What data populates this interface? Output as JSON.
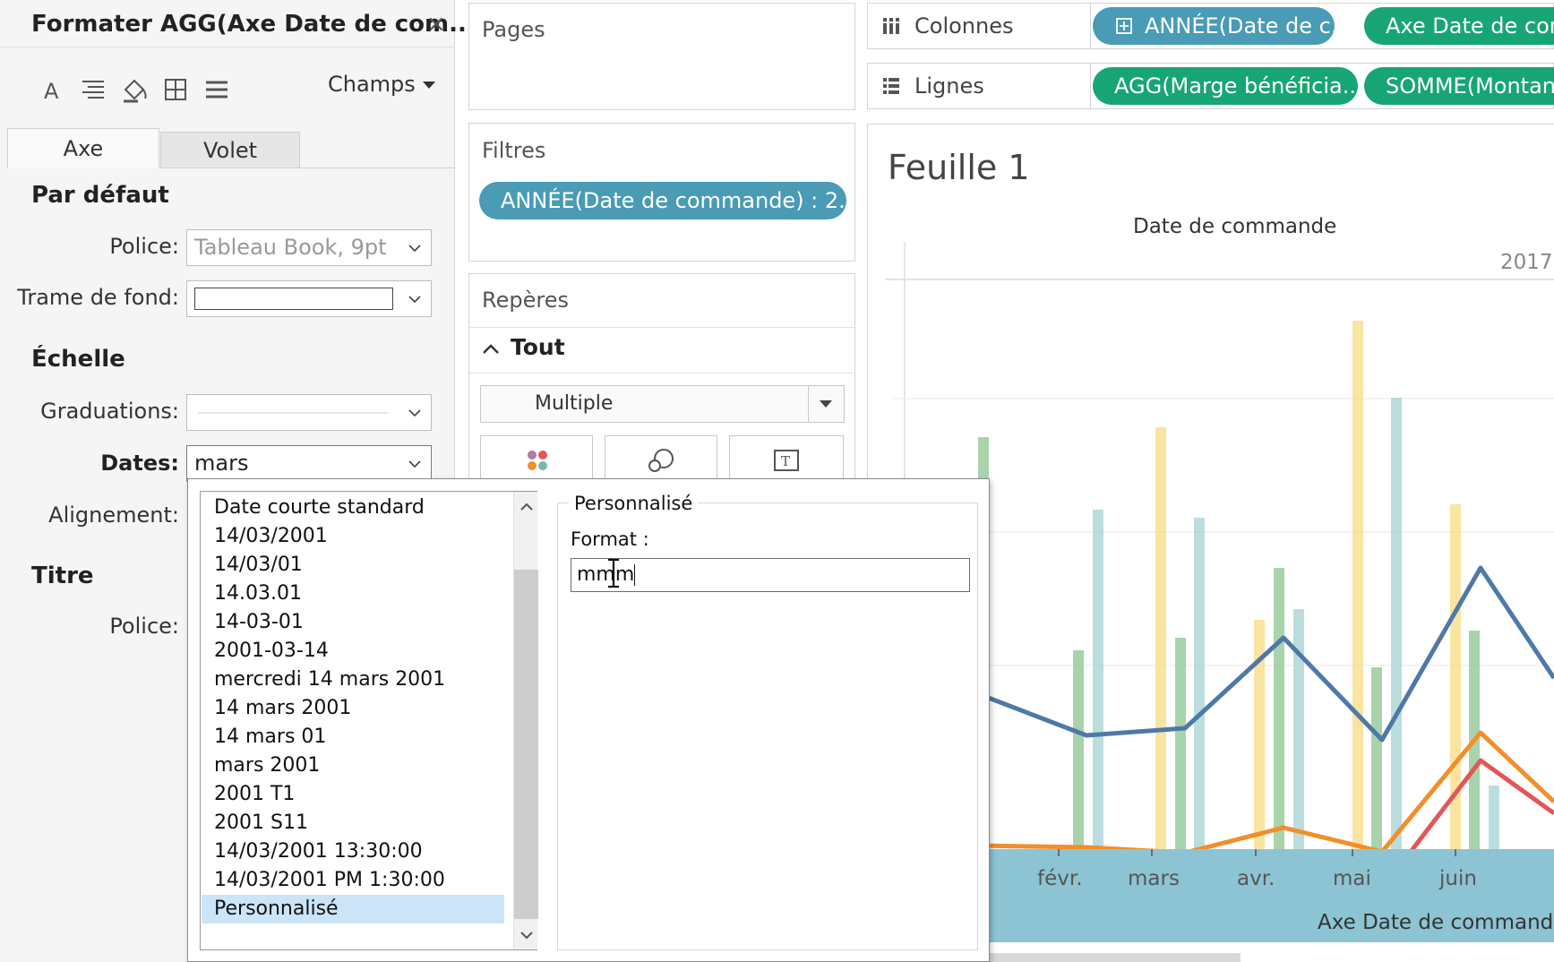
{
  "format_pane": {
    "title": "Formater AGG(Axe Date de com...",
    "close_glyph": "×",
    "fields_label": "Champs",
    "tabs": [
      {
        "label": "Axe"
      },
      {
        "label": "Volet"
      }
    ],
    "sections": {
      "default": "Par défaut",
      "scale": "Échelle",
      "title": "Titre"
    },
    "labels": {
      "font": "Police:",
      "shading": "Trame de fond:",
      "ticks": "Graduations:",
      "dates": "Dates:",
      "alignment": "Alignement:",
      "title_font": "Police:"
    },
    "values": {
      "font": "Tableau Book, 9pt",
      "dates": "mars"
    }
  },
  "shelves": {
    "pages": "Pages",
    "filters": "Filtres",
    "filter_pill": "ANNÉE(Date de commande) : 2..",
    "marks": "Repères",
    "marks_all": "Tout",
    "mark_type": "Multiple",
    "columns": "Colonnes",
    "rows": "Lignes",
    "column_pills": [
      "ANNÉE(Date de c..",
      "Axe Date de com"
    ],
    "row_pills": [
      "AGG(Marge bénéficia..",
      "SOMME(Montan"
    ]
  },
  "date_popup": {
    "formats": [
      "Date courte standard",
      "14/03/2001",
      "14/03/01",
      "14.03.01",
      "14-03-01",
      "2001-03-14",
      "mercredi 14 mars 2001",
      "14 mars 2001",
      "14 mars 01",
      "mars 2001",
      "2001 T1",
      "2001 S11",
      "14/03/2001 13:30:00",
      "14/03/2001 PM 1:30:00",
      "Personnalisé"
    ],
    "selected_index": 14,
    "custom_group_label": "Personnalisé",
    "format_label": "Format :",
    "format_value": "mmm"
  },
  "view": {
    "sheet_title": "Feuille 1",
    "column_header": "Date de commande",
    "year": "2017",
    "month_labels": [
      "févr.",
      "mars",
      "avr.",
      "mai",
      "juin"
    ],
    "axis_title": "Axe Date de commande"
  },
  "colors": {
    "pill_blue": "#4a9bb5",
    "pill_green": "#17a673",
    "axis_band": "#8cc4d4",
    "bar_green": "#8cc48f",
    "bar_yellow": "#f6d87a",
    "bar_teal": "#9ecfd0",
    "line_blue": "#4e79a7",
    "line_orange": "#f28e2b",
    "line_red": "#e15759",
    "selection": "#cce4f7"
  }
}
